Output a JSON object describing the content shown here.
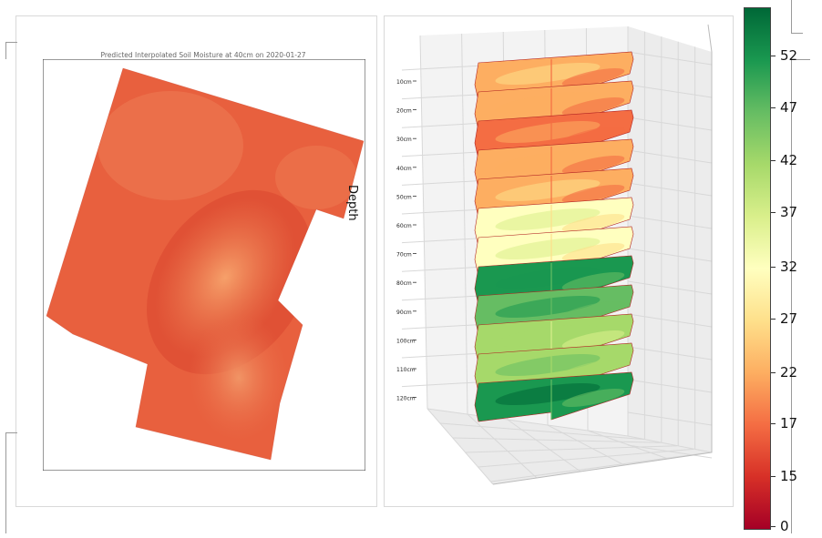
{
  "map": {
    "title": "Predicted Interpolated Soil Moisture at 40cm on 2020-01-27"
  },
  "depth_axis_label": "Depth",
  "colorbar": {
    "ticks": [
      "52",
      "47",
      "42",
      "37",
      "32",
      "27",
      "22",
      "17",
      "15",
      "0"
    ],
    "colors": [
      "#a50026",
      "#d73027",
      "#f46d43",
      "#fdae61",
      "#fee08b",
      "#ffffbf",
      "#d9ef8b",
      "#a6d96a",
      "#66bd63",
      "#1a9850",
      "#006837"
    ]
  },
  "chart_data": [
    {
      "type": "heatmap",
      "title": "Predicted Interpolated Soil Moisture at 40cm on 2020-01-27",
      "depth": "40cm",
      "date": "2020-01-27",
      "value_range_shown": [
        12,
        24
      ]
    },
    {
      "type": "heatmap",
      "zlabel": "Depth",
      "depth_levels": [
        "10cm",
        "20cm",
        "30cm",
        "40cm",
        "50cm",
        "60cm",
        "70cm",
        "80cm",
        "90cm",
        "100cm",
        "110cm",
        "120cm"
      ],
      "dominant_moisture_by_depth": [
        18,
        15,
        14,
        15,
        17,
        27,
        30,
        50,
        48,
        38,
        42,
        52
      ],
      "colorbar_ticks": [
        52,
        47,
        42,
        37,
        32,
        27,
        22,
        17,
        15,
        0
      ],
      "colormap": "RdYlGn"
    }
  ]
}
